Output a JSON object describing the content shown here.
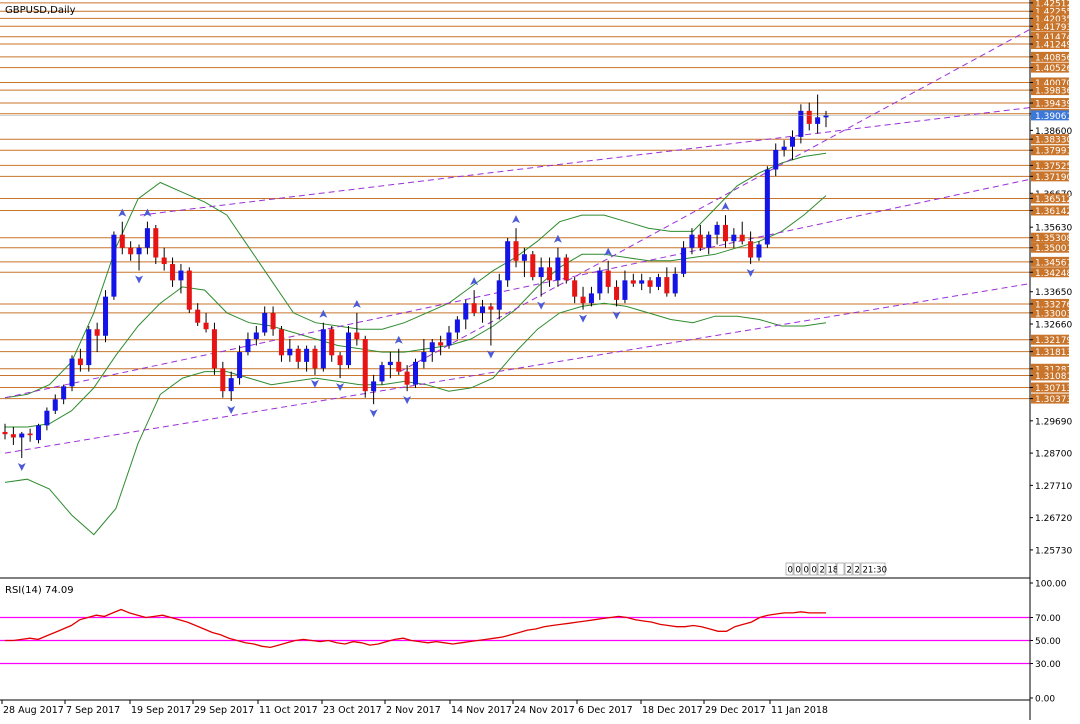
{
  "window": {
    "symbol_title": "GBPUSD,Daily",
    "timer_cells": [
      "0",
      "0",
      "0",
      "0",
      "2",
      "18",
      "",
      "2",
      "2",
      "21:30"
    ]
  },
  "indicator": {
    "label": "RSI(14) 74.09",
    "levels": [
      30,
      50,
      70
    ],
    "scale_labels": [
      "100.00",
      "70.00",
      "50.00",
      "30.00",
      "0.00"
    ],
    "ylim": [
      0,
      100
    ]
  },
  "colors": {
    "bull_candle": "#1414e6",
    "bear_candle": "#e61414",
    "wick": "#000000",
    "resistance_lines": "#c8742a",
    "bollinger": "#2e8b2e",
    "trendlines": "#9b30d9",
    "rsi_line": "#e00000",
    "rsi_levels": "#ff00ff",
    "fractal_arrows": "#4a5ad8",
    "current_price_bg": "#3c78d8"
  },
  "chart_data": [
    {
      "type": "candlestick",
      "title": "GBPUSD,Daily",
      "ylim": [
        1.2493,
        1.426
      ],
      "y_ticks": [
        "1.42512",
        "1.42255",
        "1.42035",
        "1.41793",
        "1.41474",
        "1.41249",
        "1.40856",
        "1.40526",
        "1.40070",
        "1.39836",
        "1.39439",
        "1.39109",
        "1.38600",
        "1.38330",
        "1.37991",
        "1.37525",
        "1.37190",
        "1.36670",
        "1.36512",
        "1.36142",
        "1.35630",
        "1.35308",
        "1.35001",
        "1.34567",
        "1.34248",
        "1.33650",
        "1.33276",
        "1.33003",
        "1.32660",
        "1.32179",
        "1.31813",
        "1.31287",
        "1.31081",
        "1.30713",
        "1.30373",
        "1.29690",
        "1.28700",
        "1.27710",
        "1.26720",
        "1.25730"
      ],
      "x_labels": [
        "28 Aug 2017",
        "7 Sep 2017",
        "19 Sep 2017",
        "29 Sep 2017",
        "11 Oct 2017",
        "23 Oct 2017",
        "2 Nov 2017",
        "14 Nov 2017",
        "24 Nov 2017",
        "6 Dec 2017",
        "18 Dec 2017",
        "29 Dec 2017",
        "11 Jan 2018"
      ],
      "current_price": "1.39061",
      "horizontal_levels": [
        1.42512,
        1.42255,
        1.42035,
        1.41793,
        1.41474,
        1.41249,
        1.40856,
        1.40526,
        1.4007,
        1.39836,
        1.39439,
        1.39109,
        1.3833,
        1.37991,
        1.37525,
        1.3719,
        1.36512,
        1.36142,
        1.35308,
        1.35001,
        1.34567,
        1.34248,
        1.33276,
        1.33003,
        1.32179,
        1.31813,
        1.31287,
        1.31081,
        1.30713,
        1.30373
      ],
      "candles": [
        [
          1.2935,
          1.296,
          1.2912,
          1.2928
        ],
        [
          1.2928,
          1.295,
          1.2895,
          1.2918
        ],
        [
          1.2918,
          1.2935,
          1.2855,
          1.293
        ],
        [
          1.293,
          1.2945,
          1.2905,
          1.2925
        ],
        [
          1.291,
          1.296,
          1.29,
          1.2955
        ],
        [
          1.2955,
          1.301,
          1.294,
          1.3
        ],
        [
          1.3,
          1.305,
          1.299,
          1.3035
        ],
        [
          1.3035,
          1.308,
          1.302,
          1.3075
        ],
        [
          1.3075,
          1.317,
          1.306,
          1.316
        ],
        [
          1.316,
          1.319,
          1.312,
          1.314
        ],
        [
          1.314,
          1.326,
          1.312,
          1.325
        ],
        [
          1.325,
          1.327,
          1.318,
          1.323
        ],
        [
          1.323,
          1.337,
          1.321,
          1.335
        ],
        [
          1.335,
          1.355,
          1.334,
          1.354
        ],
        [
          1.354,
          1.358,
          1.348,
          1.35
        ],
        [
          1.35,
          1.352,
          1.346,
          1.348
        ],
        [
          1.348,
          1.351,
          1.343,
          1.35
        ],
        [
          1.35,
          1.358,
          1.348,
          1.356
        ],
        [
          1.356,
          1.357,
          1.345,
          1.347
        ],
        [
          1.347,
          1.35,
          1.343,
          1.345
        ],
        [
          1.345,
          1.347,
          1.338,
          1.34
        ],
        [
          1.34,
          1.345,
          1.336,
          1.343
        ],
        [
          1.343,
          1.344,
          1.33,
          1.331
        ],
        [
          1.331,
          1.333,
          1.326,
          1.327
        ],
        [
          1.327,
          1.33,
          1.324,
          1.325
        ],
        [
          1.325,
          1.327,
          1.311,
          1.313
        ],
        [
          1.313,
          1.315,
          1.304,
          1.306
        ],
        [
          1.306,
          1.312,
          1.303,
          1.31
        ],
        [
          1.31,
          1.32,
          1.308,
          1.318
        ],
        [
          1.318,
          1.324,
          1.317,
          1.322
        ],
        [
          1.322,
          1.326,
          1.32,
          1.324
        ],
        [
          1.324,
          1.332,
          1.323,
          1.33
        ],
        [
          1.33,
          1.332,
          1.323,
          1.325
        ],
        [
          1.325,
          1.326,
          1.315,
          1.317
        ],
        [
          1.317,
          1.322,
          1.315,
          1.319
        ],
        [
          1.319,
          1.32,
          1.313,
          1.315
        ],
        [
          1.315,
          1.32,
          1.312,
          1.319
        ],
        [
          1.319,
          1.32,
          1.311,
          1.313
        ],
        [
          1.313,
          1.327,
          1.312,
          1.325
        ],
        [
          1.325,
          1.326,
          1.315,
          1.317
        ],
        [
          1.317,
          1.318,
          1.31,
          1.314
        ],
        [
          1.314,
          1.326,
          1.313,
          1.324
        ],
        [
          1.324,
          1.33,
          1.32,
          1.322
        ],
        [
          1.322,
          1.323,
          1.304,
          1.306
        ],
        [
          1.306,
          1.311,
          1.302,
          1.309
        ],
        [
          1.309,
          1.315,
          1.308,
          1.314
        ],
        [
          1.314,
          1.318,
          1.31,
          1.315
        ],
        [
          1.315,
          1.319,
          1.311,
          1.312
        ],
        [
          1.312,
          1.314,
          1.306,
          1.308
        ],
        [
          1.308,
          1.316,
          1.307,
          1.315
        ],
        [
          1.315,
          1.322,
          1.313,
          1.318
        ],
        [
          1.318,
          1.322,
          1.315,
          1.321
        ],
        [
          1.321,
          1.323,
          1.317,
          1.32
        ],
        [
          1.32,
          1.326,
          1.319,
          1.324
        ],
        [
          1.324,
          1.329,
          1.322,
          1.328
        ],
        [
          1.328,
          1.334,
          1.325,
          1.333
        ],
        [
          1.333,
          1.337,
          1.329,
          1.33
        ],
        [
          1.33,
          1.334,
          1.327,
          1.332
        ],
        [
          1.332,
          1.333,
          1.32,
          1.331
        ],
        [
          1.331,
          1.342,
          1.328,
          1.34
        ],
        [
          1.34,
          1.353,
          1.338,
          1.352
        ],
        [
          1.352,
          1.356,
          1.344,
          1.346
        ],
        [
          1.346,
          1.35,
          1.341,
          1.348
        ],
        [
          1.348,
          1.349,
          1.34,
          1.341
        ],
        [
          1.341,
          1.347,
          1.335,
          1.344
        ],
        [
          1.344,
          1.347,
          1.338,
          1.34
        ],
        [
          1.34,
          1.35,
          1.338,
          1.347
        ],
        [
          1.347,
          1.348,
          1.339,
          1.34
        ],
        [
          1.34,
          1.341,
          1.333,
          1.335
        ],
        [
          1.335,
          1.338,
          1.331,
          1.333
        ],
        [
          1.333,
          1.338,
          1.332,
          1.336
        ],
        [
          1.336,
          1.344,
          1.334,
          1.343
        ],
        [
          1.343,
          1.346,
          1.336,
          1.338
        ],
        [
          1.338,
          1.34,
          1.332,
          1.334
        ],
        [
          1.334,
          1.343,
          1.333,
          1.34
        ],
        [
          1.34,
          1.342,
          1.338,
          1.339
        ],
        [
          1.339,
          1.342,
          1.337,
          1.34
        ],
        [
          1.34,
          1.341,
          1.336,
          1.338
        ],
        [
          1.338,
          1.342,
          1.337,
          1.341
        ],
        [
          1.341,
          1.344,
          1.335,
          1.336
        ],
        [
          1.336,
          1.344,
          1.335,
          1.342
        ],
        [
          1.342,
          1.352,
          1.341,
          1.35
        ],
        [
          1.35,
          1.356,
          1.348,
          1.354
        ],
        [
          1.354,
          1.357,
          1.349,
          1.35
        ],
        [
          1.35,
          1.355,
          1.348,
          1.354
        ],
        [
          1.354,
          1.358,
          1.351,
          1.357
        ],
        [
          1.357,
          1.36,
          1.35,
          1.352
        ],
        [
          1.352,
          1.356,
          1.35,
          1.354
        ],
        [
          1.354,
          1.358,
          1.351,
          1.352
        ],
        [
          1.352,
          1.355,
          1.345,
          1.347
        ],
        [
          1.347,
          1.352,
          1.346,
          1.351
        ],
        [
          1.351,
          1.375,
          1.35,
          1.374
        ],
        [
          1.374,
          1.382,
          1.372,
          1.38
        ],
        [
          1.38,
          1.383,
          1.378,
          1.381
        ],
        [
          1.381,
          1.386,
          1.377,
          1.384
        ],
        [
          1.384,
          1.394,
          1.382,
          1.392
        ],
        [
          1.392,
          1.3945,
          1.386,
          1.388
        ],
        [
          1.388,
          1.397,
          1.385,
          1.39
        ],
        [
          1.39,
          1.392,
          1.387,
          1.3906
        ]
      ],
      "bollinger_bands": {
        "upper": [
          1.304,
          1.305,
          1.308,
          1.315,
          1.33,
          1.35,
          1.365,
          1.37,
          1.367,
          1.364,
          1.36,
          1.35,
          1.34,
          1.33,
          1.327,
          1.326,
          1.325,
          1.325,
          1.327,
          1.33,
          1.333,
          1.338,
          1.343,
          1.347,
          1.352,
          1.358,
          1.36,
          1.36,
          1.358,
          1.356,
          1.355,
          1.355,
          1.362,
          1.369,
          1.373,
          1.376,
          1.378,
          1.379
        ],
        "middle": [
          1.295,
          1.295,
          1.296,
          1.3,
          1.307,
          1.317,
          1.326,
          1.333,
          1.338,
          1.337,
          1.33,
          1.327,
          1.326,
          1.324,
          1.322,
          1.32,
          1.319,
          1.318,
          1.318,
          1.319,
          1.32,
          1.322,
          1.326,
          1.331,
          1.338,
          1.344,
          1.348,
          1.348,
          1.347,
          1.346,
          1.346,
          1.347,
          1.348,
          1.35,
          1.352,
          1.355,
          1.36,
          1.366
        ],
        "lower": [
          1.278,
          1.279,
          1.276,
          1.268,
          1.262,
          1.27,
          1.29,
          1.305,
          1.31,
          1.312,
          1.312,
          1.31,
          1.308,
          1.309,
          1.31,
          1.309,
          1.308,
          1.308,
          1.309,
          1.308,
          1.306,
          1.307,
          1.31,
          1.318,
          1.325,
          1.33,
          1.332,
          1.333,
          1.332,
          1.33,
          1.328,
          1.327,
          1.329,
          1.329,
          1.328,
          1.326,
          1.326,
          1.327
        ]
      },
      "trendlines": [
        [
          1.287,
          1.339
        ],
        [
          1.36,
          1.393
        ],
        [
          1.304,
          1.371
        ],
        [
          1.312,
          1.417
        ]
      ]
    },
    {
      "type": "line",
      "title": "RSI(14) 74.09",
      "ylim": [
        0,
        100
      ],
      "series": [
        {
          "values": [
            50,
            50,
            51,
            52,
            51,
            54,
            57,
            60,
            63,
            68,
            70,
            72,
            71,
            74,
            77,
            74,
            72,
            70,
            71,
            72,
            70,
            68,
            66,
            63,
            60,
            57,
            55,
            52,
            50,
            48,
            47,
            45,
            44,
            46,
            48,
            50,
            51,
            50,
            49,
            50,
            48,
            47,
            49,
            48,
            46,
            47,
            49,
            51,
            52,
            50,
            49,
            48,
            49,
            48,
            47,
            48,
            49,
            50,
            51,
            52,
            53,
            55,
            57,
            59,
            60,
            62,
            63,
            64,
            65,
            66,
            67,
            68,
            69,
            70,
            71,
            70,
            68,
            67,
            66,
            64,
            63,
            62,
            62,
            63,
            62,
            60,
            58,
            58,
            62,
            64,
            66,
            70,
            72,
            73,
            74,
            74,
            75,
            74,
            74,
            74
          ]
        }
      ]
    }
  ]
}
